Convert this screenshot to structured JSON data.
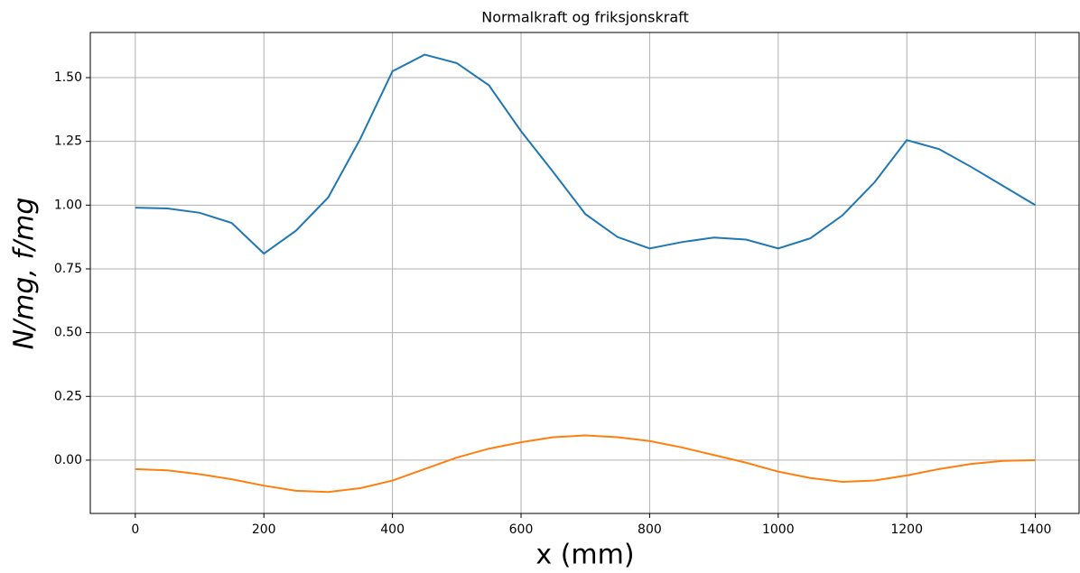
{
  "chart_data": {
    "type": "line",
    "title": "Normalkraft og friksjonskraft",
    "xlabel": "x (mm)",
    "ylabel": "N/mg, f/mg",
    "x": [
      0,
      50,
      100,
      150,
      200,
      250,
      300,
      350,
      400,
      450,
      500,
      550,
      600,
      650,
      700,
      750,
      800,
      850,
      900,
      950,
      1000,
      1050,
      1100,
      1150,
      1200,
      1250,
      1300,
      1350,
      1400
    ],
    "series": [
      {
        "color": "#1f77b4",
        "values": [
          0.99,
          0.987,
          0.97,
          0.93,
          0.81,
          0.9,
          1.03,
          1.26,
          1.525,
          1.59,
          1.557,
          1.47,
          1.29,
          1.13,
          0.965,
          0.875,
          0.83,
          0.855,
          0.873,
          0.865,
          0.83,
          0.87,
          0.96,
          1.09,
          1.255,
          1.22,
          1.15,
          1.075,
          1.0
        ]
      },
      {
        "color": "#ff7f0e",
        "values": [
          -0.035,
          -0.04,
          -0.055,
          -0.075,
          -0.1,
          -0.12,
          -0.125,
          -0.11,
          -0.08,
          -0.035,
          0.01,
          0.045,
          0.07,
          0.09,
          0.097,
          0.09,
          0.075,
          0.05,
          0.02,
          -0.01,
          -0.045,
          -0.07,
          -0.085,
          -0.08,
          -0.06,
          -0.035,
          -0.015,
          -0.003,
          0.0
        ]
      }
    ],
    "xlim": [
      -70,
      1468
    ],
    "ylim": [
      -0.209,
      1.677
    ],
    "xticks": [
      0,
      200,
      400,
      600,
      800,
      1000,
      1200,
      1400
    ],
    "yticks": [
      {
        "value": 0,
        "label": "0.00"
      },
      {
        "value": 0.25,
        "label": "0.25"
      },
      {
        "value": 0.5,
        "label": "0.50"
      },
      {
        "value": 0.75,
        "label": "0.75"
      },
      {
        "value": 1,
        "label": "1.00"
      },
      {
        "value": 1.25,
        "label": "1.25"
      },
      {
        "value": 1.5,
        "label": "1.50"
      }
    ],
    "grid": true
  }
}
